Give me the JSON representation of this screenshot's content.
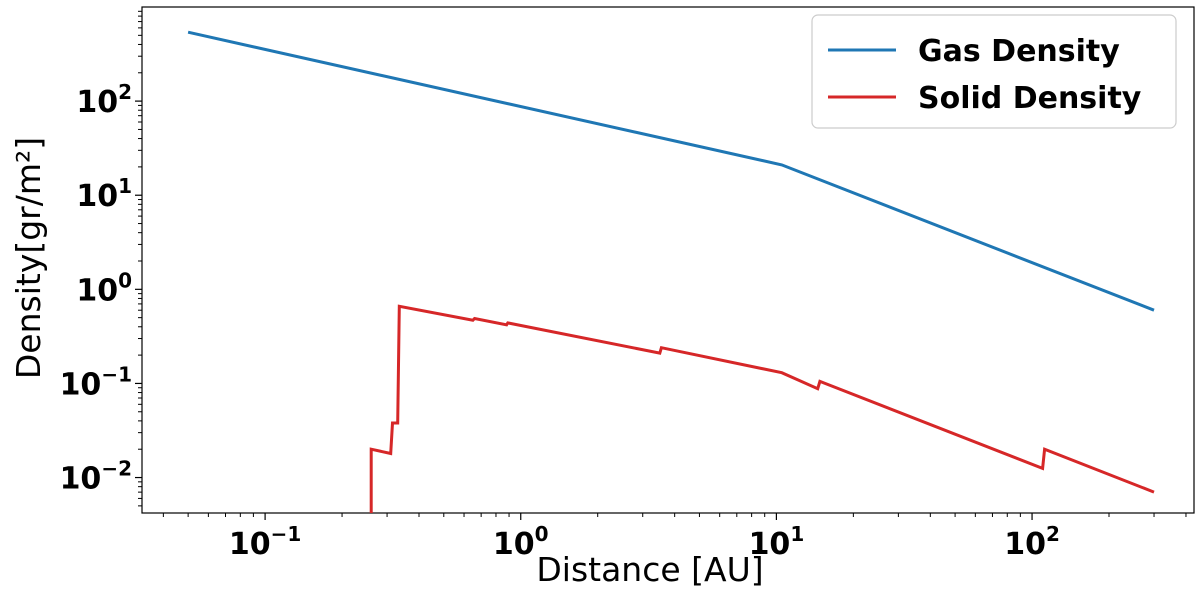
{
  "chart_data": {
    "type": "line",
    "title": "",
    "xlabel": "Distance [AU]",
    "ylabel": "Density[gr/m²]",
    "xscale": "log",
    "yscale": "log",
    "xlim": [
      0.033,
      430
    ],
    "ylim": [
      0.0042,
      1000
    ],
    "grid": false,
    "legend_position": "top-right",
    "x_ticks": [
      {
        "value": 0.1,
        "base": "10",
        "exp": "−1"
      },
      {
        "value": 1,
        "base": "10",
        "exp": "0"
      },
      {
        "value": 10,
        "base": "10",
        "exp": "1"
      },
      {
        "value": 100,
        "base": "10",
        "exp": "2"
      }
    ],
    "y_ticks": [
      {
        "value": 0.01,
        "base": "10",
        "exp": "−2"
      },
      {
        "value": 0.1,
        "base": "10",
        "exp": "−1"
      },
      {
        "value": 1,
        "base": "10",
        "exp": "0"
      },
      {
        "value": 10,
        "base": "10",
        "exp": "1"
      },
      {
        "value": 100,
        "base": "10",
        "exp": "2"
      }
    ],
    "series": [
      {
        "name": "Gas Density",
        "color": "#1f77b4",
        "points": [
          [
            0.05,
            540
          ],
          [
            10.5,
            21
          ],
          [
            300,
            0.6
          ]
        ]
      },
      {
        "name": "Solid Density",
        "color": "#d62728",
        "points": [
          [
            0.26,
            0.004
          ],
          [
            0.26,
            0.02
          ],
          [
            0.31,
            0.018
          ],
          [
            0.315,
            0.038
          ],
          [
            0.33,
            0.038
          ],
          [
            0.335,
            0.66
          ],
          [
            0.65,
            0.47
          ],
          [
            0.66,
            0.49
          ],
          [
            0.88,
            0.42
          ],
          [
            0.89,
            0.44
          ],
          [
            3.5,
            0.21
          ],
          [
            3.55,
            0.24
          ],
          [
            10.5,
            0.13
          ],
          [
            14.5,
            0.088
          ],
          [
            14.8,
            0.105
          ],
          [
            110,
            0.0125
          ],
          [
            112,
            0.02
          ],
          [
            300,
            0.007
          ]
        ]
      }
    ]
  }
}
